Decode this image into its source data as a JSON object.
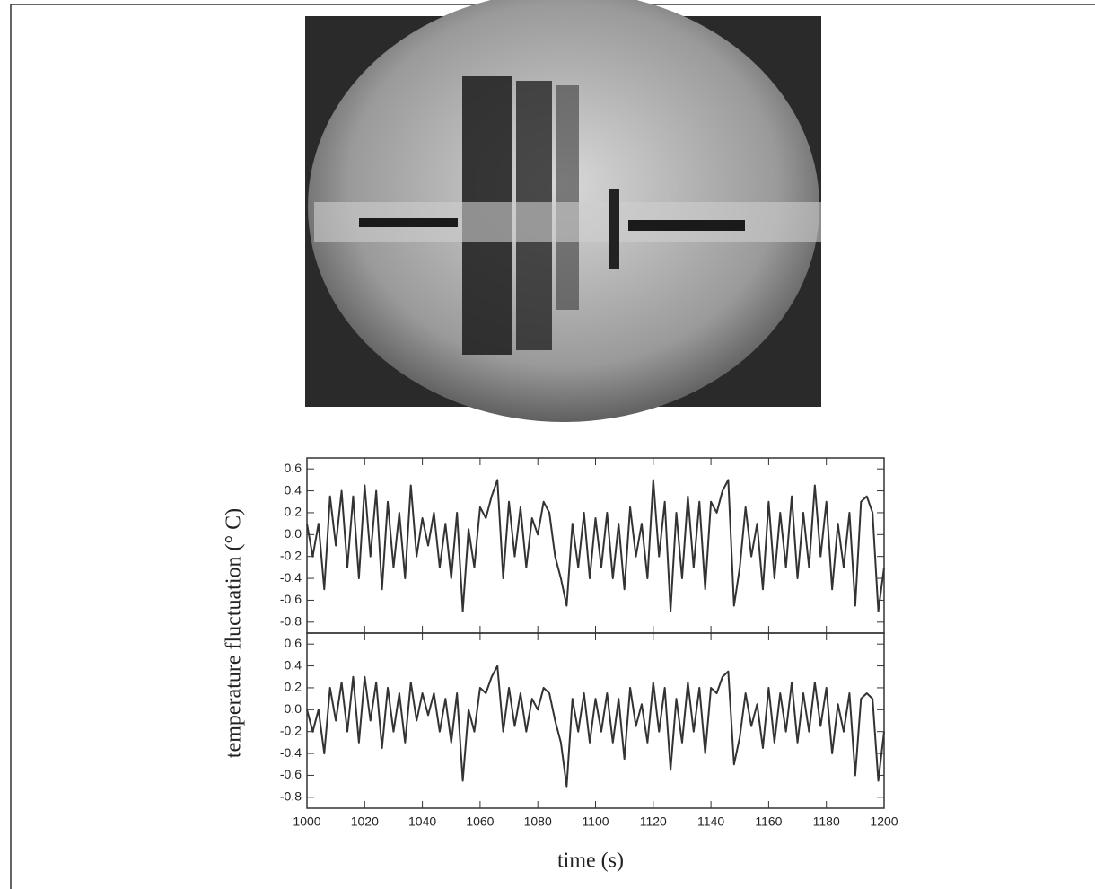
{
  "chart_data": [
    {
      "type": "line",
      "y_label": "temperature fluctuation (° C)",
      "color": "#333333",
      "x": [
        1000,
        1002,
        1004,
        1006,
        1008,
        1010,
        1012,
        1014,
        1016,
        1018,
        1020,
        1022,
        1024,
        1026,
        1028,
        1030,
        1032,
        1034,
        1036,
        1038,
        1040,
        1042,
        1044,
        1046,
        1048,
        1050,
        1052,
        1054,
        1056,
        1058,
        1060,
        1062,
        1064,
        1066,
        1068,
        1070,
        1072,
        1074,
        1076,
        1078,
        1080,
        1082,
        1084,
        1086,
        1088,
        1090,
        1092,
        1094,
        1096,
        1098,
        1100,
        1102,
        1104,
        1106,
        1108,
        1110,
        1112,
        1114,
        1116,
        1118,
        1120,
        1122,
        1124,
        1126,
        1128,
        1130,
        1132,
        1134,
        1136,
        1138,
        1140,
        1142,
        1144,
        1146,
        1148,
        1150,
        1152,
        1154,
        1156,
        1158,
        1160,
        1162,
        1164,
        1166,
        1168,
        1170,
        1172,
        1174,
        1176,
        1178,
        1180,
        1182,
        1184,
        1186,
        1188,
        1190,
        1192,
        1194,
        1196,
        1198,
        1200
      ],
      "values": [
        0.1,
        -0.2,
        0.1,
        -0.5,
        0.35,
        -0.1,
        0.4,
        -0.3,
        0.35,
        -0.4,
        0.45,
        -0.2,
        0.4,
        -0.5,
        0.3,
        -0.3,
        0.2,
        -0.4,
        0.45,
        -0.2,
        0.15,
        -0.1,
        0.2,
        -0.3,
        0.1,
        -0.4,
        0.2,
        -0.7,
        0.05,
        -0.3,
        0.25,
        0.15,
        0.35,
        0.5,
        -0.4,
        0.3,
        -0.2,
        0.25,
        -0.3,
        0.15,
        0.0,
        0.3,
        0.2,
        -0.2,
        -0.4,
        -0.65,
        0.1,
        -0.3,
        0.2,
        -0.4,
        0.15,
        -0.3,
        0.2,
        -0.4,
        0.1,
        -0.5,
        0.25,
        -0.2,
        0.1,
        -0.4,
        0.5,
        -0.2,
        0.3,
        -0.7,
        0.2,
        -0.4,
        0.35,
        -0.3,
        0.3,
        -0.5,
        0.3,
        0.2,
        0.4,
        0.5,
        -0.65,
        -0.3,
        0.25,
        -0.2,
        0.1,
        -0.5,
        0.3,
        -0.4,
        0.2,
        -0.3,
        0.35,
        -0.4,
        0.2,
        -0.3,
        0.45,
        -0.2,
        0.3,
        -0.5,
        0.1,
        -0.3,
        0.2,
        -0.65,
        0.3,
        0.35,
        0.2,
        -0.7,
        -0.3
      ],
      "xlim": [
        1000,
        1200
      ],
      "ylim": [
        -0.9,
        0.7
      ],
      "yticks": [
        -0.8,
        -0.6,
        -0.4,
        -0.2,
        {
          "value": 0,
          "label": "0.0"
        },
        0.2,
        0.4,
        0.6
      ]
    },
    {
      "type": "line",
      "x_label": "time (s)",
      "color": "#333333",
      "x": [
        1000,
        1002,
        1004,
        1006,
        1008,
        1010,
        1012,
        1014,
        1016,
        1018,
        1020,
        1022,
        1024,
        1026,
        1028,
        1030,
        1032,
        1034,
        1036,
        1038,
        1040,
        1042,
        1044,
        1046,
        1048,
        1050,
        1052,
        1054,
        1056,
        1058,
        1060,
        1062,
        1064,
        1066,
        1068,
        1070,
        1072,
        1074,
        1076,
        1078,
        1080,
        1082,
        1084,
        1086,
        1088,
        1090,
        1092,
        1094,
        1096,
        1098,
        1100,
        1102,
        1104,
        1106,
        1108,
        1110,
        1112,
        1114,
        1116,
        1118,
        1120,
        1122,
        1124,
        1126,
        1128,
        1130,
        1132,
        1134,
        1136,
        1138,
        1140,
        1142,
        1144,
        1146,
        1148,
        1150,
        1152,
        1154,
        1156,
        1158,
        1160,
        1162,
        1164,
        1166,
        1168,
        1170,
        1172,
        1174,
        1176,
        1178,
        1180,
        1182,
        1184,
        1186,
        1188,
        1190,
        1192,
        1194,
        1196,
        1198,
        1200
      ],
      "values": [
        0.0,
        -0.2,
        0.0,
        -0.4,
        0.2,
        -0.1,
        0.25,
        -0.2,
        0.3,
        -0.3,
        0.3,
        -0.1,
        0.25,
        -0.35,
        0.2,
        -0.2,
        0.15,
        -0.3,
        0.25,
        -0.1,
        0.15,
        -0.05,
        0.15,
        -0.2,
        0.1,
        -0.3,
        0.15,
        -0.65,
        0.0,
        -0.2,
        0.2,
        0.15,
        0.3,
        0.4,
        -0.2,
        0.2,
        -0.15,
        0.15,
        -0.2,
        0.1,
        0.0,
        0.2,
        0.15,
        -0.1,
        -0.3,
        -0.7,
        0.1,
        -0.2,
        0.15,
        -0.3,
        0.1,
        -0.2,
        0.15,
        -0.3,
        0.1,
        -0.45,
        0.2,
        -0.15,
        0.05,
        -0.3,
        0.25,
        -0.2,
        0.2,
        -0.55,
        0.1,
        -0.3,
        0.25,
        -0.2,
        0.2,
        -0.4,
        0.2,
        0.15,
        0.3,
        0.35,
        -0.5,
        -0.25,
        0.15,
        -0.15,
        0.05,
        -0.35,
        0.2,
        -0.3,
        0.15,
        -0.2,
        0.25,
        -0.3,
        0.15,
        -0.2,
        0.25,
        -0.15,
        0.2,
        -0.4,
        0.05,
        -0.2,
        0.15,
        -0.6,
        0.1,
        0.15,
        0.1,
        -0.65,
        -0.2
      ],
      "xlim": [
        1000,
        1200
      ],
      "ylim": [
        -0.9,
        0.7
      ],
      "xticks": [
        1000,
        1020,
        1040,
        1060,
        1080,
        1100,
        1120,
        1140,
        1160,
        1180,
        1200
      ],
      "yticks": [
        -0.8,
        -0.6,
        -0.4,
        -0.2,
        {
          "value": 0,
          "label": "0.0"
        },
        0.2,
        0.4,
        0.6
      ]
    }
  ]
}
